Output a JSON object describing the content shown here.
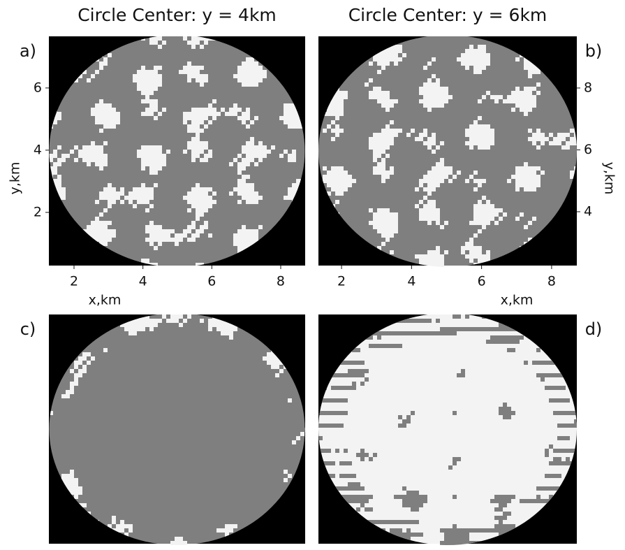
{
  "chart_data": [
    {
      "type": "image",
      "title": "Circle Center: y = 4km",
      "label": "a)",
      "xlabel": "x,km",
      "ylabel": "y,km",
      "xlim": [
        1.27,
        8.71
      ],
      "xticks": [
        2,
        4,
        6,
        8
      ],
      "ylim": [
        0.29,
        7.66
      ],
      "yticks": [
        2,
        4,
        6
      ]
    },
    {
      "type": "image",
      "title": "Circle Center: y = 6km",
      "label": "b)",
      "xlabel": "x,km",
      "ylabel": "y,km",
      "xlim": [
        1.34,
        8.72
      ],
      "xticks": [
        2,
        4,
        6,
        8
      ],
      "ylim": [
        2.26,
        9.67
      ],
      "yticks": [
        4,
        6,
        8
      ]
    },
    {
      "type": "image",
      "label": "c)"
    },
    {
      "type": "image",
      "label": "d)"
    }
  ]
}
